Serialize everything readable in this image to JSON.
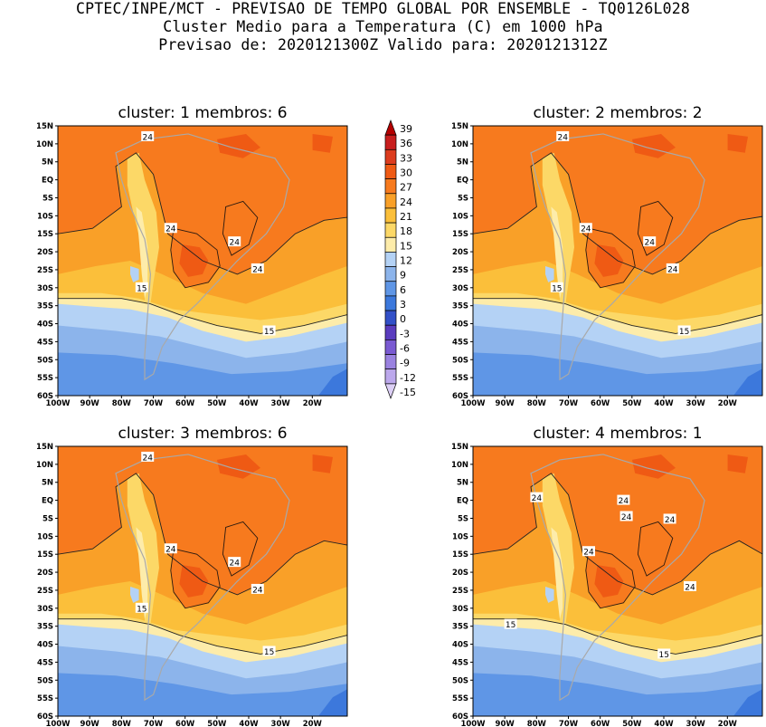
{
  "header": {
    "line1": "CPTEC/INPE/MCT - PREVISAO DE TEMPO GLOBAL POR ENSEMBLE - TQ0126L028",
    "line2": "Cluster Medio para a Temperatura (C) em 1000 hPa",
    "line3": "Previsao de: 2020121300Z   Valido para: 2020121312Z"
  },
  "axes": {
    "lat_labels": [
      "15N",
      "10N",
      "5N",
      "EQ",
      "5S",
      "10S",
      "15S",
      "20S",
      "25S",
      "30S",
      "35S",
      "40S",
      "45S",
      "50S",
      "55S",
      "60S"
    ],
    "lon_labels": [
      "100W",
      "90W",
      "80W",
      "70W",
      "60W",
      "50W",
      "40W",
      "30W",
      "20W"
    ]
  },
  "colorbar": {
    "levels": [
      "39",
      "36",
      "33",
      "30",
      "27",
      "24",
      "21",
      "18",
      "15",
      "12",
      "9",
      "6",
      "3",
      "0",
      "-3",
      "-6",
      "-9",
      "-12",
      "-15"
    ],
    "colors": [
      "#b40000",
      "#c81e1e",
      "#dc3c1e",
      "#ef5a14",
      "#f77a1e",
      "#f9a028",
      "#fbbf3a",
      "#fcd867",
      "#fdecaa",
      "#b4d2f5",
      "#8cb4eb",
      "#5f96e6",
      "#3c78dc",
      "#3250c8",
      "#5a3cbe",
      "#7a5ad2",
      "#9a82e0",
      "#bca8ec",
      "#dccff5"
    ]
  },
  "panels": [
    {
      "title": "cluster: 1   membros: 6",
      "labels": [
        "24",
        "24",
        "24",
        "24",
        "15",
        "15"
      ]
    },
    {
      "title": "cluster: 2   membros: 2",
      "labels": [
        "24",
        "24",
        "24",
        "24",
        "15",
        "15"
      ]
    },
    {
      "title": "cluster: 3   membros: 6",
      "labels": [
        "24",
        "24",
        "24",
        "24",
        "15",
        "15"
      ]
    },
    {
      "title": "cluster: 4   membros: 1",
      "labels": [
        "24",
        "24",
        "24",
        "24",
        "24",
        "24",
        "15",
        "15"
      ]
    }
  ]
}
